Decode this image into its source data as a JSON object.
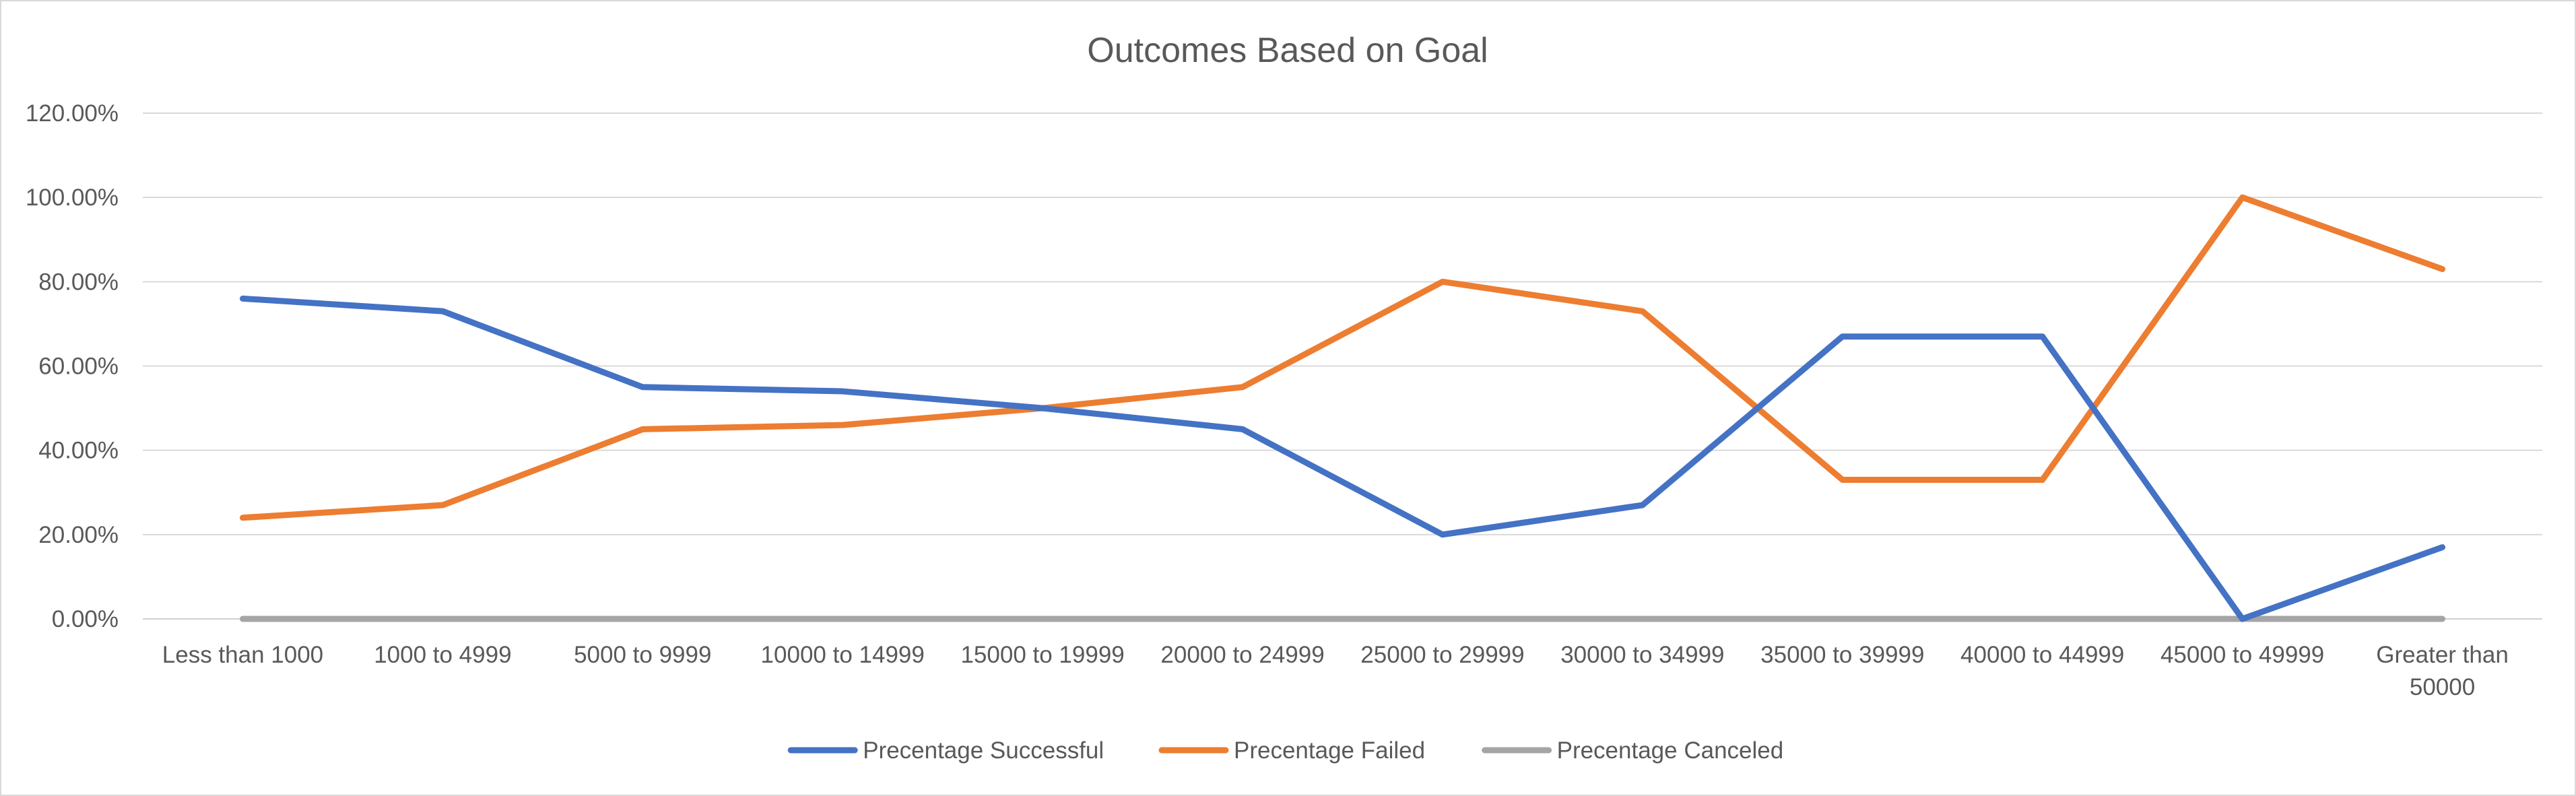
{
  "chart_data": {
    "type": "line",
    "title": "Outcomes Based on Goal",
    "xlabel": "",
    "ylabel": "",
    "categories": [
      "Less than 1000",
      "1000 to 4999",
      "5000 to 9999",
      "10000 to 14999",
      "15000 to 19999",
      "20000 to 24999",
      "25000 to 29999",
      "30000 to 34999",
      "35000 to 39999",
      "40000 to 44999",
      "45000 to 49999",
      "Greater than 50000"
    ],
    "category_lines": [
      [
        "Less than 1000"
      ],
      [
        "1000 to 4999"
      ],
      [
        "5000 to 9999"
      ],
      [
        "10000 to 14999"
      ],
      [
        "15000 to 19999"
      ],
      [
        "20000 to 24999"
      ],
      [
        "25000 to 29999"
      ],
      [
        "30000 to 34999"
      ],
      [
        "35000 to 39999"
      ],
      [
        "40000 to 44999"
      ],
      [
        "45000 to 49999"
      ],
      [
        "Greater than",
        "50000"
      ]
    ],
    "y_ticks": [
      "0.00%",
      "20.00%",
      "40.00%",
      "60.00%",
      "80.00%",
      "100.00%",
      "120.00%"
    ],
    "ylim": [
      0,
      120
    ],
    "grid": true,
    "legend_position": "bottom",
    "series": [
      {
        "name": "Precentage Successful",
        "color": "#4472C4",
        "values": [
          76,
          73,
          55,
          54,
          50,
          45,
          20,
          27,
          67,
          67,
          0,
          17
        ]
      },
      {
        "name": "Precentage Failed",
        "color": "#ED7D31",
        "values": [
          24,
          27,
          45,
          46,
          50,
          55,
          80,
          73,
          33,
          33,
          100,
          83
        ]
      },
      {
        "name": "Precentage Canceled",
        "color": "#A5A5A5",
        "values": [
          0,
          0,
          0,
          0,
          0,
          0,
          0,
          0,
          0,
          0,
          0,
          0
        ]
      }
    ]
  }
}
